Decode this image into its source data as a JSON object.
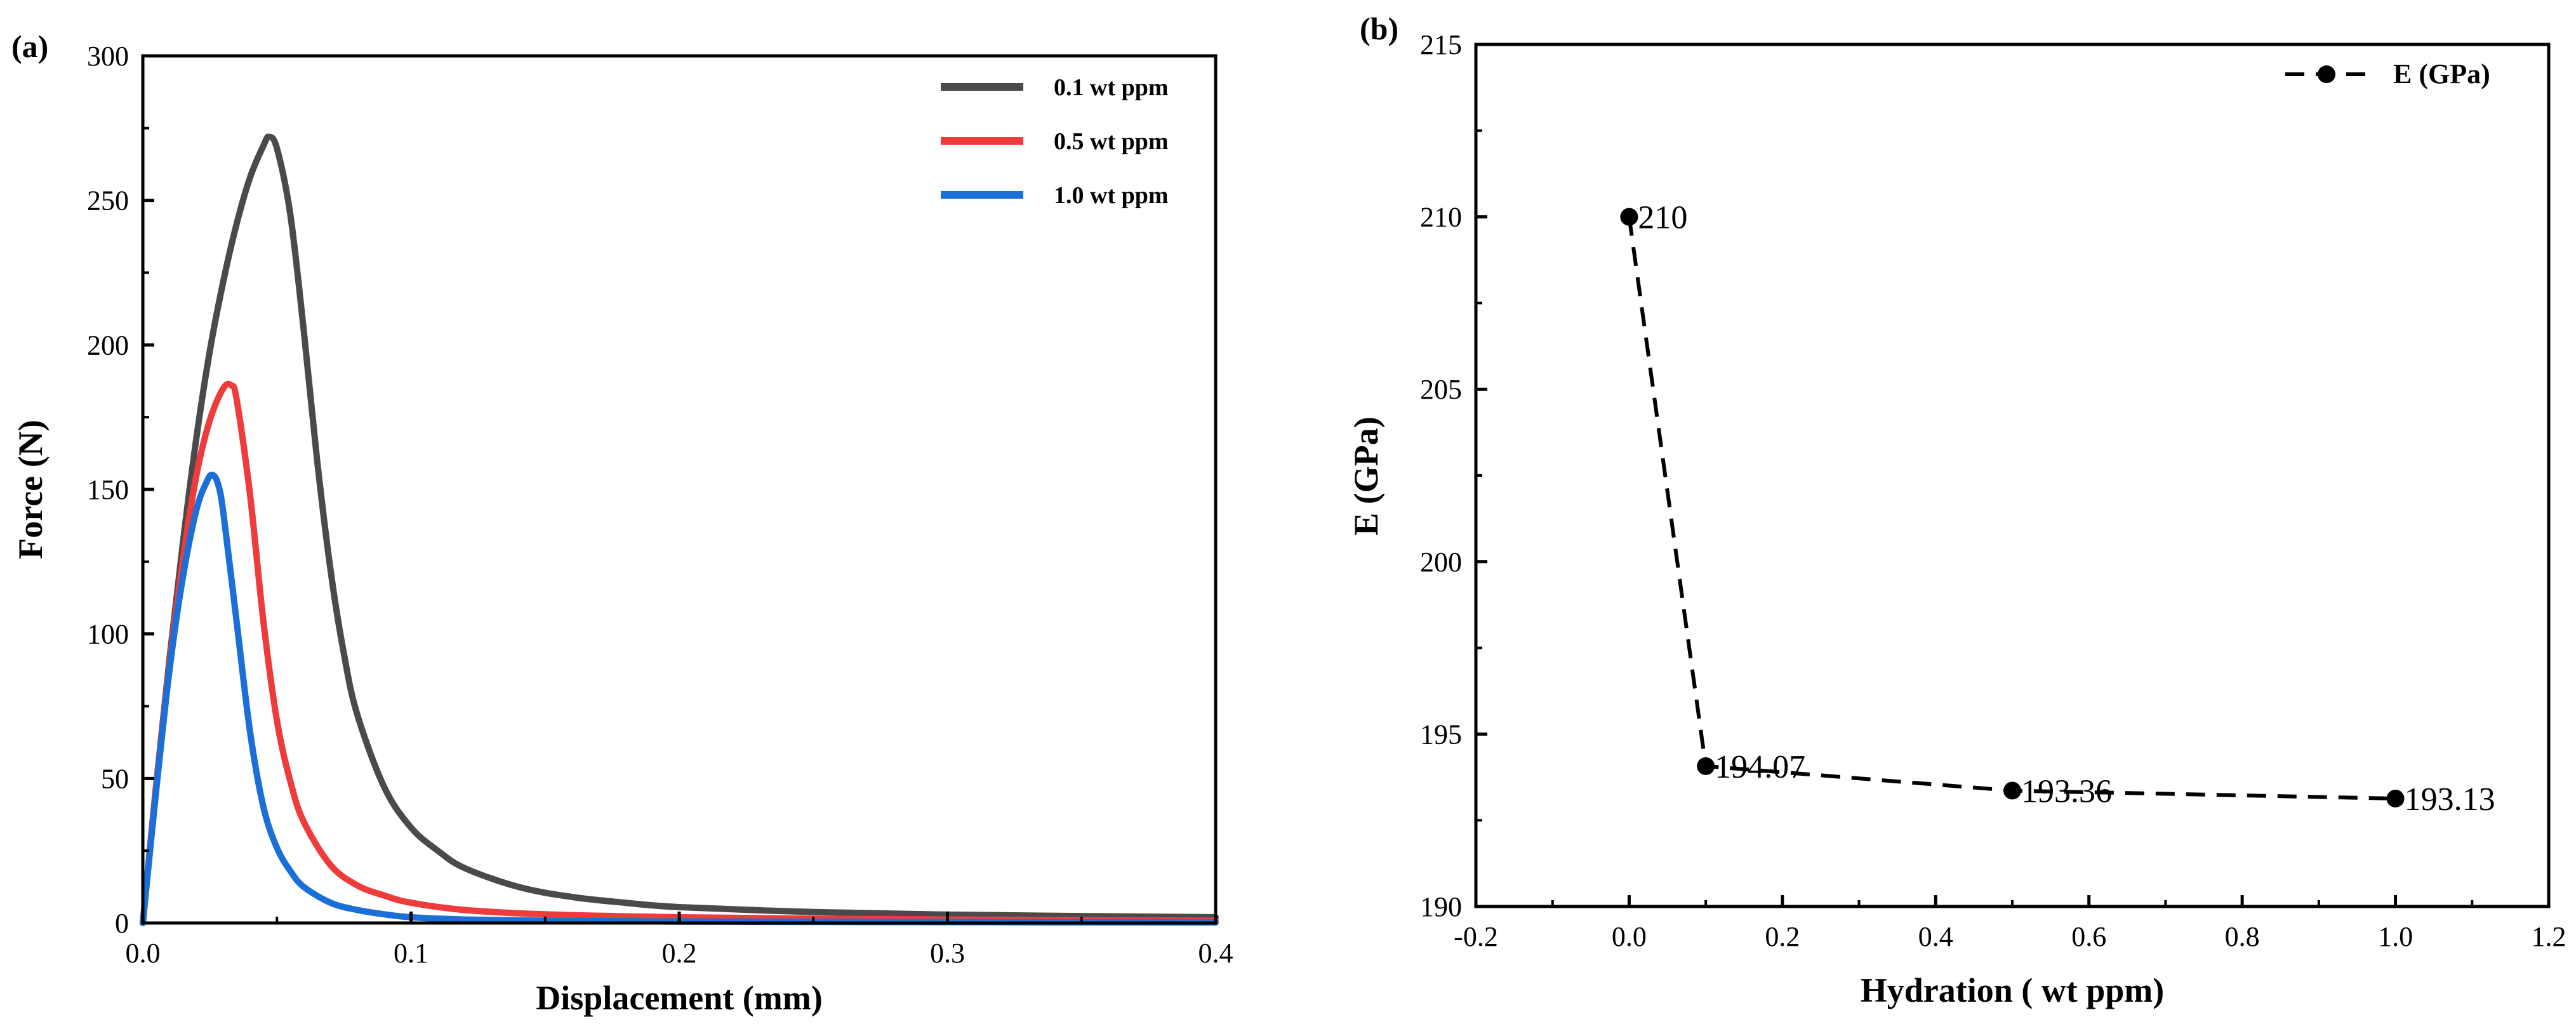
{
  "chart_data": [
    {
      "panel": "(a)",
      "type": "line",
      "xlabel": "Displacement (mm)",
      "ylabel": "Force (N)",
      "xlim": [
        0,
        0.4
      ],
      "ylim": [
        0,
        300
      ],
      "xticks": [
        0.0,
        0.1,
        0.2,
        0.3,
        0.4
      ],
      "xtick_labels": [
        "0.0",
        "0.1",
        "0.2",
        "0.3",
        "0.4"
      ],
      "yticks": [
        0,
        50,
        100,
        150,
        200,
        250,
        300
      ],
      "ytick_labels": [
        "0",
        "50",
        "100",
        "150",
        "200",
        "250",
        "300"
      ],
      "legend_position": "top-right",
      "series": [
        {
          "name": "0.1 wt ppm",
          "color": "#4a4a4a",
          "peak_x": 0.047,
          "peak_y": 272,
          "x": [
            0,
            0.005,
            0.01,
            0.015,
            0.02,
            0.025,
            0.03,
            0.035,
            0.04,
            0.045,
            0.047,
            0.05,
            0.055,
            0.06,
            0.065,
            0.07,
            0.075,
            0.08,
            0.09,
            0.1,
            0.11,
            0.12,
            0.14,
            0.16,
            0.18,
            0.2,
            0.25,
            0.3,
            0.35,
            0.4
          ],
          "values": [
            0,
            48,
            92,
            132,
            168,
            198,
            222,
            242,
            258,
            269,
            272,
            268,
            245,
            205,
            160,
            122,
            93,
            72,
            47,
            33,
            25,
            19,
            12.5,
            9,
            7,
            5.5,
            3.8,
            2.9,
            2.4,
            2
          ]
        },
        {
          "name": "0.5 wt ppm",
          "color": "#ee3b3b",
          "peak_x": 0.033,
          "peak_y": 186,
          "x": [
            0,
            0.005,
            0.01,
            0.015,
            0.02,
            0.025,
            0.03,
            0.033,
            0.035,
            0.04,
            0.045,
            0.05,
            0.055,
            0.06,
            0.07,
            0.08,
            0.09,
            0.1,
            0.12,
            0.15,
            0.2,
            0.25,
            0.3,
            0.35,
            0.4
          ],
          "values": [
            0,
            48,
            90,
            126,
            155,
            174,
            185,
            186,
            181,
            148,
            104,
            70,
            49,
            35,
            20,
            13,
            9.5,
            7,
            4.5,
            3,
            2,
            1.5,
            1.2,
            1,
            0.8
          ]
        },
        {
          "name": "1.0 wt ppm",
          "color": "#1a6fd8",
          "peak_x": 0.026,
          "peak_y": 155,
          "x": [
            0,
            0.005,
            0.01,
            0.015,
            0.02,
            0.024,
            0.026,
            0.028,
            0.03,
            0.035,
            0.04,
            0.045,
            0.05,
            0.055,
            0.06,
            0.07,
            0.08,
            0.09,
            0.1,
            0.12,
            0.15,
            0.2,
            0.3,
            0.4
          ],
          "values": [
            0,
            46,
            88,
            120,
            143,
            153,
            155,
            152,
            142,
            104,
            66,
            40,
            26,
            18,
            12.5,
            7,
            4.5,
            3,
            2,
            1.2,
            0.8,
            0.5,
            0.3,
            0.2
          ]
        }
      ]
    },
    {
      "panel": "(b)",
      "type": "line",
      "xlabel": "Hydration ( wt ppm)",
      "ylabel": "E (GPa)",
      "xlim": [
        -0.2,
        1.2
      ],
      "ylim": [
        190,
        215
      ],
      "xticks": [
        -0.2,
        0.0,
        0.2,
        0.4,
        0.6,
        0.8,
        1.0,
        1.2
      ],
      "xtick_labels": [
        "-0.2",
        "0.0",
        "0.2",
        "0.4",
        "0.6",
        "0.8",
        "1.0",
        "1.2"
      ],
      "yticks": [
        190,
        195,
        200,
        205,
        210,
        215
      ],
      "ytick_labels": [
        "190",
        "195",
        "200",
        "205",
        "210",
        "215"
      ],
      "legend_position": "top-right",
      "series": [
        {
          "name": "E (GPa)",
          "style": "dashed-with-circle-markers",
          "color": "#000000",
          "x": [
            0.0,
            0.1,
            0.5,
            1.0
          ],
          "values": [
            210,
            194.07,
            193.36,
            193.13
          ],
          "labels": [
            "210",
            "194.07",
            "193.36",
            "193.13"
          ]
        }
      ]
    }
  ]
}
